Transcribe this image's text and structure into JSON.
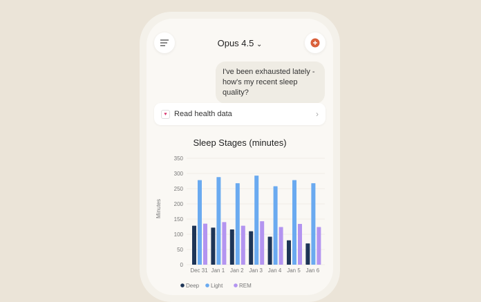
{
  "header": {
    "title": "Opus 4.5",
    "menu_icon": "menu-icon",
    "new_chat_icon": "new-chat-icon",
    "accent": "#d9603b"
  },
  "message": {
    "text": "I've been exhausted lately - how's my recent sleep quality?"
  },
  "tool_call": {
    "label": "Read health data",
    "icon": "heart-icon"
  },
  "chart_data": {
    "type": "bar",
    "title": "Sleep Stages (minutes)",
    "ylabel": "Minutes",
    "ylim": [
      0,
      350
    ],
    "yticks": [
      0,
      50,
      100,
      150,
      200,
      250,
      300,
      350
    ],
    "grid": true,
    "legend": "bottom",
    "categories": [
      "Dec 31",
      "Jan 1",
      "Jan 2",
      "Jan 3",
      "Jan 4",
      "Jan 5",
      "Jan 6"
    ],
    "series": [
      {
        "name": "Deep",
        "color": "#1e3557",
        "values": [
          128,
          122,
          116,
          110,
          92,
          80,
          70
        ]
      },
      {
        "name": "Light",
        "color": "#6aaaf0",
        "values": [
          278,
          288,
          268,
          293,
          258,
          278,
          268
        ]
      },
      {
        "name": "REM",
        "color": "#b394f0",
        "values": [
          135,
          140,
          128,
          143,
          124,
          134,
          124
        ]
      }
    ]
  }
}
